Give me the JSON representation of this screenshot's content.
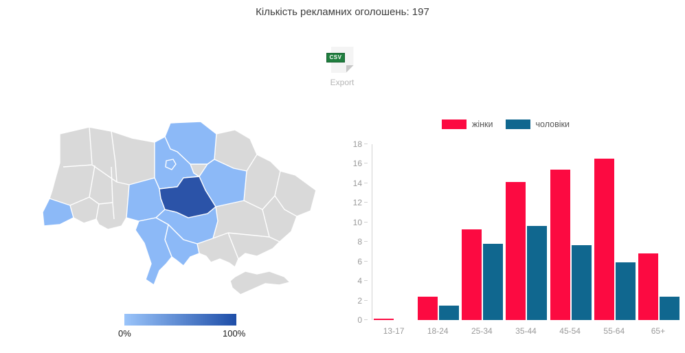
{
  "page": {
    "title": "Кількість рекламних оголошень: 197"
  },
  "export": {
    "badge": "CSV",
    "label": "Export"
  },
  "chart_data": [
    {
      "type": "choropleth",
      "title": "",
      "area": "Ukraine oblasts",
      "colorscale": {
        "min_label": "0%",
        "max_label": "100%",
        "low_color": "#9ac4fa",
        "high_color": "#1e4ea8"
      },
      "colors": {
        "none": "#d9d9d9",
        "low": "#8cb9f7",
        "high": "#2b53a8"
      },
      "region_levels": {
        "zakarpattia": "low",
        "chernihiv": "low",
        "kyiv": "low",
        "kyiv_city": "low",
        "poltava": "low",
        "vinnytsia": "low",
        "kirovohrad": "low",
        "mykolaiv": "low",
        "odesa": "low",
        "cherkasy": "high"
      }
    },
    {
      "type": "bar",
      "title": "",
      "categories": [
        "13-17",
        "18-24",
        "25-34",
        "35-44",
        "45-54",
        "55-64",
        "65+"
      ],
      "series": [
        {
          "name": "жінки",
          "color": "#fc0a41",
          "values": [
            0.15,
            2.4,
            9.3,
            14.1,
            15.4,
            16.5,
            6.8
          ]
        },
        {
          "name": "чоловіки",
          "color": "#10678f",
          "values": [
            0,
            1.5,
            7.8,
            9.6,
            7.7,
            5.9,
            2.4
          ]
        }
      ],
      "ylim": [
        0,
        18
      ],
      "yticks": [
        0,
        2,
        4,
        6,
        8,
        10,
        12,
        14,
        16,
        18
      ],
      "grid": false,
      "legend_position": "top"
    }
  ]
}
